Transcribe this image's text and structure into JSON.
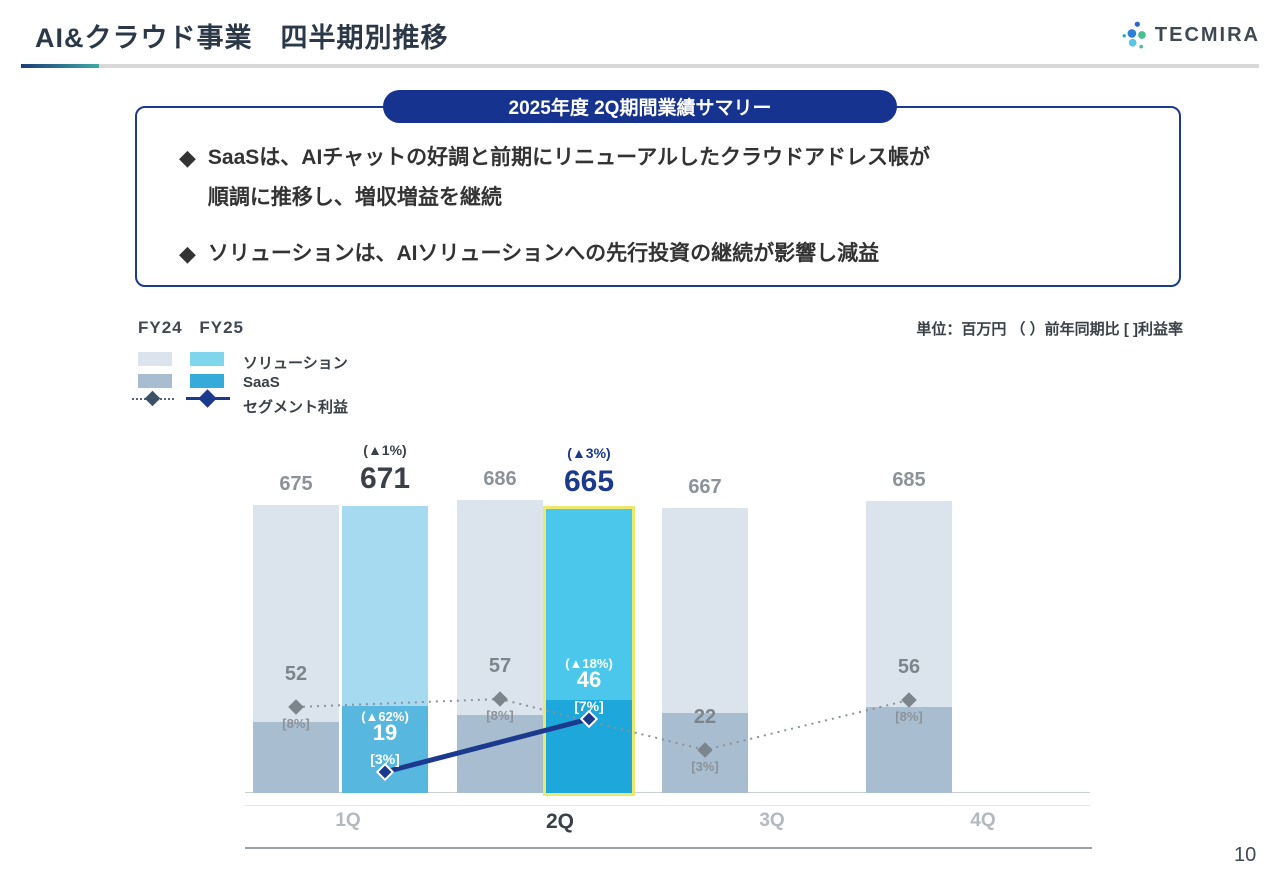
{
  "header": {
    "title": "AI&クラウド事業　四半期別推移",
    "logo_text": "TECMIRA",
    "page_number": "10"
  },
  "summary": {
    "pill": "2025年度 2Q期間業績サマリー",
    "bullets": [
      {
        "line1": "SaaSは、AIチャットの好調と前期にリニューアルしたクラウドアドレス帳が",
        "line2": "順調に推移し、増収増益を継続"
      },
      {
        "line1": "ソリューションは、AIソリューションへの先行投資の継続が影響し減益",
        "line2": ""
      }
    ]
  },
  "icons": {
    "bullet": "◆"
  },
  "legend": {
    "col1": "FY24",
    "col2": "FY25",
    "row1": "ソリューション",
    "row2": "SaaS",
    "row3": "セグメント利益"
  },
  "unit_note": "単位：百万円 （ ）前年同期比  [ ]利益率",
  "colors": {
    "fy24_solution": "#dbe3ed",
    "fy24_saas": "#a9bdd1",
    "fy25_solution_prev": "#a6daf1",
    "fy25_saas_prev": "#58b7de",
    "fy25_solution_current": "#4ac7eb",
    "fy25_saas_current": "#1ea7da",
    "legend_fy25_solution": "#7fd6ec",
    "legend_fy25_saas": "#35abdc",
    "highlight_border": "#ece86e",
    "fy24_line": "#8a9299",
    "fy25_line": "#1b3a8e",
    "navy": "#16338f",
    "value_dark": "#3a4047",
    "value_navy": "#1b3a8e"
  },
  "chart_data": {
    "type": "bar",
    "subtype": "stacked-bars-with-profit-line",
    "unit": "百万円",
    "categories": [
      "1Q",
      "2Q",
      "3Q",
      "4Q"
    ],
    "highlight": "FY25 2Q",
    "legend_position": "top-left",
    "quarters": [
      {
        "label": "1Q",
        "fy24": {
          "total": 675,
          "saas_est": 166,
          "profit": 52,
          "rate": "[8%]"
        },
        "fy25": {
          "total": 671,
          "yoy": "(▲1%)",
          "saas_est": 204,
          "profit": 19,
          "profit_yoy": "(▲62%)",
          "rate": "[3%]",
          "highlight": false
        }
      },
      {
        "label": "2Q",
        "fy24": {
          "total": 686,
          "saas_est": 183,
          "profit": 57,
          "rate": "[8%]"
        },
        "fy25": {
          "total": 665,
          "yoy": "(▲3%)",
          "saas_est": 218,
          "profit": 46,
          "profit_yoy": "(▲18%)",
          "rate": "[7%]",
          "highlight": true
        }
      },
      {
        "label": "3Q",
        "fy24": {
          "total": 667,
          "saas_est": 187,
          "profit": 22,
          "rate": "[3%]"
        },
        "fy25": null
      },
      {
        "label": "4Q",
        "fy24": {
          "total": 685,
          "saas_est": 201,
          "profit": 56,
          "rate": "[8%]"
        },
        "fy25": null
      }
    ]
  }
}
